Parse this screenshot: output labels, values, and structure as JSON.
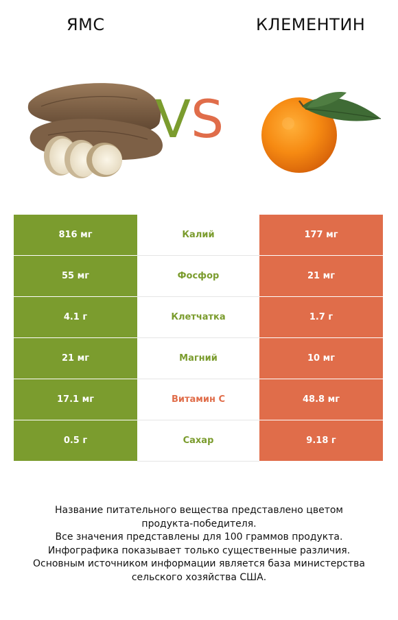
{
  "header": {
    "left_name": "ЯМС",
    "right_name": "КЛЕМЕНТИН"
  },
  "vs": {
    "v": "V",
    "s": "S"
  },
  "colors": {
    "left": "#7b9c2e",
    "right": "#e06d4a"
  },
  "rows": [
    {
      "left": "816 мг",
      "nutrient": "Калий",
      "right": "177 мг",
      "winner": "left"
    },
    {
      "left": "55 мг",
      "nutrient": "Фосфор",
      "right": "21 мг",
      "winner": "left"
    },
    {
      "left": "4.1 г",
      "nutrient": "Клетчатка",
      "right": "1.7 г",
      "winner": "left"
    },
    {
      "left": "21 мг",
      "nutrient": "Магний",
      "right": "10 мг",
      "winner": "left"
    },
    {
      "left": "17.1 мг",
      "nutrient": "Витамин C",
      "right": "48.8 мг",
      "winner": "right"
    },
    {
      "left": "0.5 г",
      "nutrient": "Сахар",
      "right": "9.18 г",
      "winner": "left"
    }
  ],
  "footnote": [
    "Название питательного вещества представлено цветом",
    "продукта-победителя.",
    "Все значения представлены для 100 граммов продукта.",
    "Инфографика показывает только существенные различия.",
    "Основным источником информации является база министерства",
    "сельского хозяйства США."
  ]
}
